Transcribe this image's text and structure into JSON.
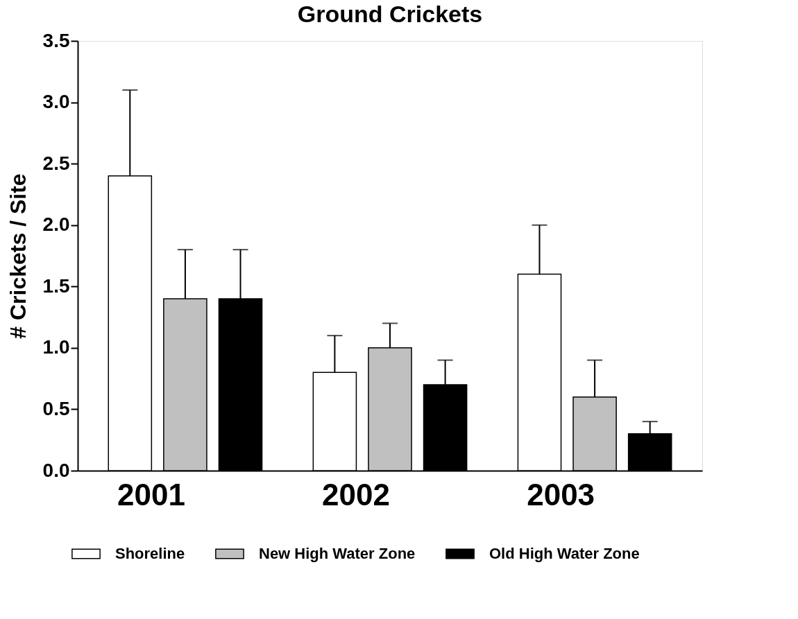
{
  "chart_data": {
    "type": "bar",
    "title": "Ground Crickets",
    "ylabel": "# Crickets / Site",
    "categories": [
      "2001",
      "2002",
      "2003"
    ],
    "series": [
      {
        "name": "Shoreline",
        "color": "#ffffff",
        "values": [
          2.4,
          0.8,
          1.6
        ],
        "errors": [
          0.7,
          0.3,
          0.4
        ]
      },
      {
        "name": "New High Water Zone",
        "color": "#c0c0c0",
        "values": [
          1.4,
          1.0,
          0.6
        ],
        "errors": [
          0.4,
          0.2,
          0.3
        ]
      },
      {
        "name": "Old High Water Zone",
        "color": "#000000",
        "values": [
          1.4,
          0.7,
          0.3
        ],
        "errors": [
          0.4,
          0.2,
          0.1
        ]
      }
    ],
    "ylim": [
      0,
      3.5
    ],
    "yticks": [
      {
        "value": 0,
        "label": "0.0"
      },
      0.5,
      {
        "value": 1,
        "label": "1.0"
      },
      1.5,
      {
        "value": 2,
        "label": "2.0"
      },
      2.5,
      {
        "value": 3,
        "label": "3.0"
      },
      3.5
    ],
    "grid": false,
    "legend": "bottom"
  }
}
